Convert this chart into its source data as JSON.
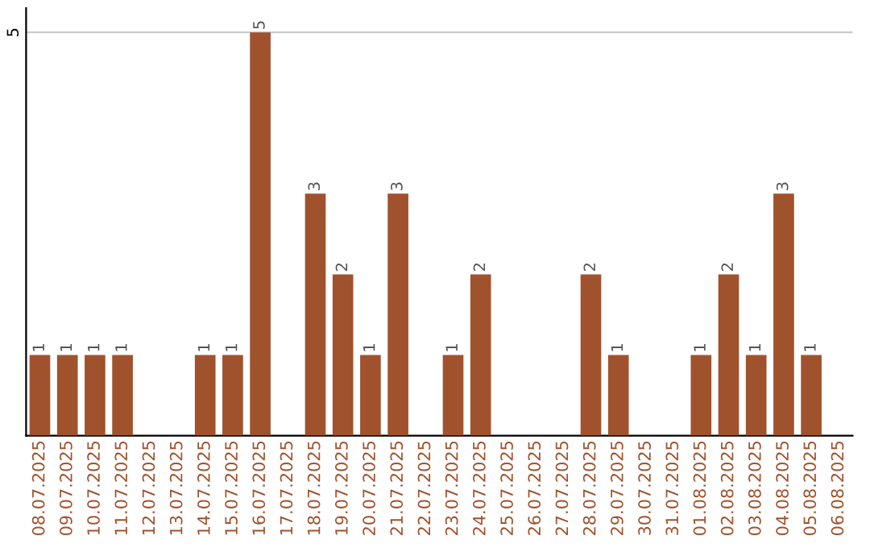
{
  "chart_data": {
    "type": "bar",
    "categories": [
      "08.07.2025",
      "09.07.2025",
      "10.07.2025",
      "11.07.2025",
      "12.07.2025",
      "13.07.2025",
      "14.07.2025",
      "15.07.2025",
      "16.07.2025",
      "17.07.2025",
      "18.07.2025",
      "19.07.2025",
      "20.07.2025",
      "21.07.2025",
      "22.07.2025",
      "23.07.2025",
      "24.07.2025",
      "25.07.2025",
      "26.07.2025",
      "27.07.2025",
      "28.07.2025",
      "29.07.2025",
      "30.07.2025",
      "31.07.2025",
      "01.08.2025",
      "02.08.2025",
      "03.08.2025",
      "04.08.2025",
      "05.08.2025",
      "06.08.2025"
    ],
    "values": [
      1,
      1,
      1,
      1,
      0,
      0,
      1,
      1,
      5,
      0,
      3,
      2,
      1,
      3,
      0,
      1,
      2,
      0,
      0,
      0,
      2,
      1,
      0,
      0,
      1,
      2,
      1,
      3,
      1,
      0
    ],
    "value_labels": [
      "1",
      "1",
      "1",
      "1",
      null,
      null,
      "1",
      "1",
      "5",
      null,
      "3",
      "2",
      "1",
      "3",
      null,
      "1",
      "2",
      null,
      null,
      null,
      "2",
      "1",
      null,
      null,
      "1",
      "2",
      "1",
      "3",
      "1",
      null
    ],
    "color": "#a0522d",
    "ylim": [
      0,
      5.3
    ],
    "yticks": [
      5
    ],
    "grid": "y"
  }
}
